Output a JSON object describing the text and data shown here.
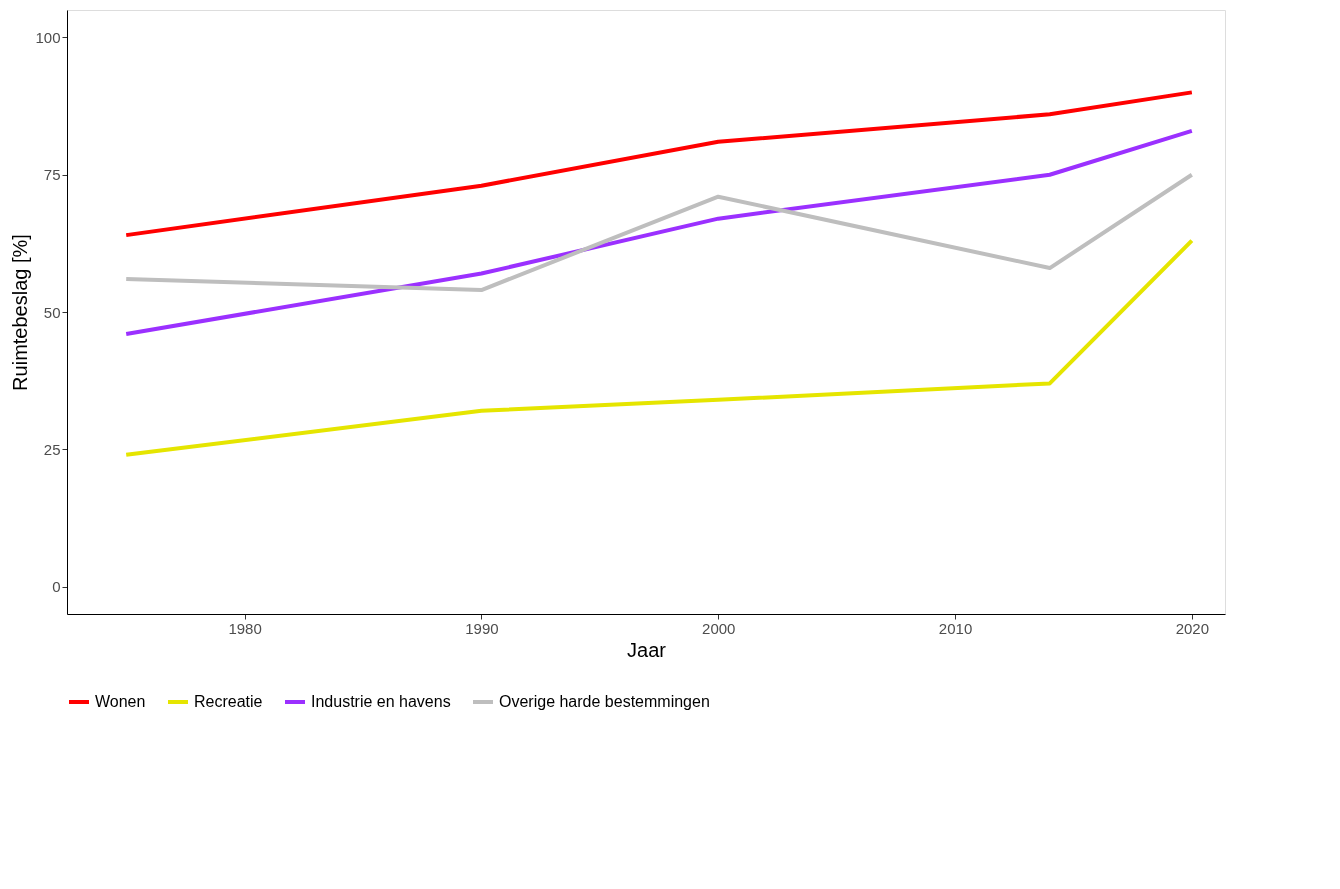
{
  "chart_data": {
    "type": "line",
    "xlabel": "Jaar",
    "ylabel": "Ruimtebeslag [%]",
    "x": [
      1975,
      1990,
      2000,
      2014,
      2020
    ],
    "series": [
      {
        "name": "Wonen",
        "color": "#ff0000",
        "values": [
          64,
          73,
          81,
          86,
          90
        ]
      },
      {
        "name": "Recreatie",
        "color": "#e5e500",
        "values": [
          24,
          32,
          34,
          37,
          63
        ]
      },
      {
        "name": "Industrie en havens",
        "color": "#9b30ff",
        "values": [
          46,
          57,
          67,
          75,
          83
        ]
      },
      {
        "name": "Overige harde bestemmingen",
        "color": "#bebebe",
        "values": [
          56,
          54,
          71,
          58,
          75
        ]
      }
    ],
    "xlim": [
      1972.5,
      2021.4
    ],
    "xticks": [
      1980,
      1990,
      2000,
      2010,
      2020
    ],
    "ylim": [
      -5,
      105
    ],
    "yticks": [
      0,
      25,
      50,
      75,
      100
    ],
    "grid": false,
    "legend": "bottom",
    "marker": "none",
    "line_style": "solid"
  }
}
